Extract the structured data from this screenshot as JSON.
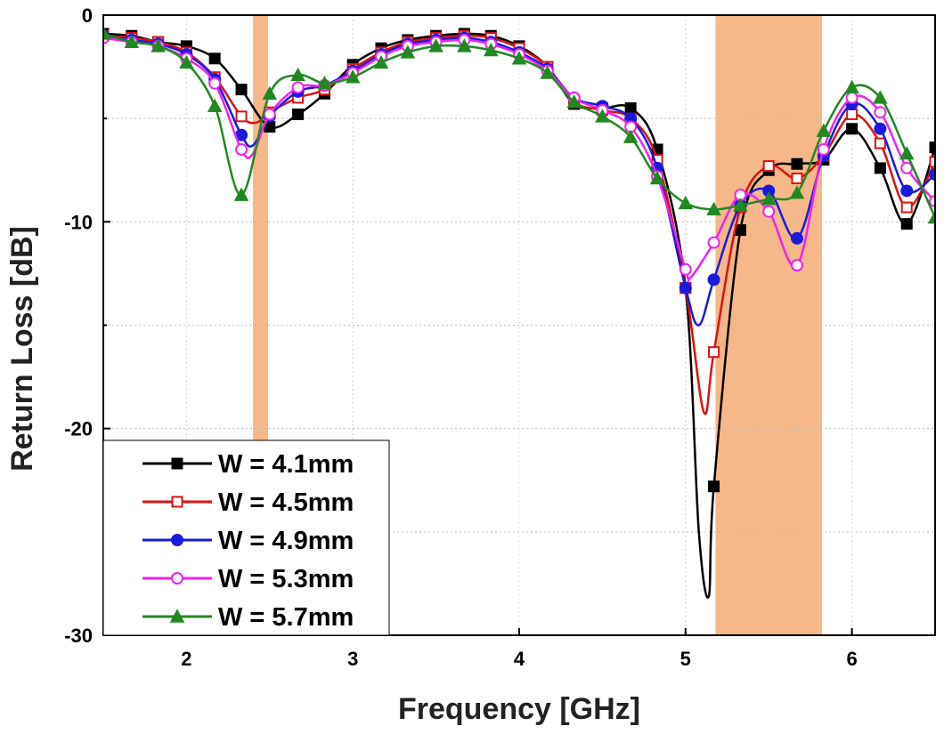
{
  "chart_data": {
    "type": "line",
    "xlabel": "Frequency [GHz]",
    "ylabel": "Return Loss [dB]",
    "xlim": [
      1.5,
      6.5
    ],
    "ylim": [
      -30,
      0
    ],
    "xticks": [
      2,
      3,
      4,
      5,
      6
    ],
    "yticks": [
      0,
      -10,
      -20,
      -30
    ],
    "grid": true,
    "legend_position": "bottom-left",
    "highlight_bands": [
      {
        "x_start": 2.4,
        "x_end": 2.49,
        "color": "#f6b888"
      },
      {
        "x_start": 5.18,
        "x_end": 5.82,
        "color": "#f6b888"
      }
    ],
    "series": [
      {
        "name": "W = 4.1mm",
        "color": "#000000",
        "marker": "square-filled",
        "points": [
          [
            1.5,
            -0.9
          ],
          [
            1.67,
            -1.0
          ],
          [
            1.83,
            -1.3
          ],
          [
            2.0,
            -1.5
          ],
          [
            2.17,
            -2.1
          ],
          [
            2.33,
            -3.6
          ],
          [
            2.5,
            -5.4
          ],
          [
            2.67,
            -4.8
          ],
          [
            2.83,
            -3.8
          ],
          [
            3.0,
            -2.4
          ],
          [
            3.17,
            -1.6
          ],
          [
            3.33,
            -1.2
          ],
          [
            3.5,
            -1.0
          ],
          [
            3.67,
            -0.9
          ],
          [
            3.83,
            -1.0
          ],
          [
            4.0,
            -1.5
          ],
          [
            4.17,
            -2.5
          ],
          [
            4.33,
            -4.3
          ],
          [
            4.5,
            -4.5
          ],
          [
            4.67,
            -4.5
          ],
          [
            4.83,
            -6.5
          ],
          [
            5.0,
            -13.2
          ],
          [
            5.08,
            -25.0
          ],
          [
            5.14,
            -28.1
          ],
          [
            5.17,
            -22.8
          ],
          [
            5.33,
            -10.4
          ],
          [
            5.5,
            -7.5
          ],
          [
            5.67,
            -7.2
          ],
          [
            5.83,
            -7.0
          ],
          [
            6.0,
            -5.5
          ],
          [
            6.17,
            -7.4
          ],
          [
            6.33,
            -10.1
          ],
          [
            6.5,
            -6.4
          ]
        ],
        "markers_x": [
          1.5,
          1.67,
          1.83,
          2.0,
          2.17,
          2.33,
          2.5,
          2.67,
          2.83,
          3.0,
          3.17,
          3.33,
          3.5,
          3.67,
          3.83,
          4.0,
          4.17,
          4.33,
          4.5,
          4.67,
          4.83,
          5.0,
          5.17,
          5.33,
          5.5,
          5.67,
          5.83,
          6.0,
          6.17,
          6.33,
          6.5
        ]
      },
      {
        "name": "W = 4.5mm",
        "color": "#dd1111",
        "marker": "square-open",
        "points": [
          [
            1.5,
            -1.0
          ],
          [
            1.67,
            -1.1
          ],
          [
            1.83,
            -1.3
          ],
          [
            2.0,
            -1.8
          ],
          [
            2.17,
            -3.0
          ],
          [
            2.33,
            -4.9
          ],
          [
            2.42,
            -5.2
          ],
          [
            2.5,
            -4.7
          ],
          [
            2.67,
            -4.0
          ],
          [
            2.83,
            -3.6
          ],
          [
            3.0,
            -2.6
          ],
          [
            3.17,
            -1.8
          ],
          [
            3.33,
            -1.3
          ],
          [
            3.5,
            -1.1
          ],
          [
            3.67,
            -1.0
          ],
          [
            3.83,
            -1.1
          ],
          [
            4.0,
            -1.6
          ],
          [
            4.17,
            -2.5
          ],
          [
            4.33,
            -4.2
          ],
          [
            4.5,
            -4.6
          ],
          [
            4.67,
            -5.0
          ],
          [
            4.83,
            -7.0
          ],
          [
            5.0,
            -13.2
          ],
          [
            5.11,
            -19.2
          ],
          [
            5.17,
            -16.3
          ],
          [
            5.33,
            -9.3
          ],
          [
            5.5,
            -7.3
          ],
          [
            5.67,
            -7.9
          ],
          [
            5.83,
            -6.8
          ],
          [
            6.0,
            -4.8
          ],
          [
            6.17,
            -6.2
          ],
          [
            6.33,
            -9.3
          ],
          [
            6.5,
            -7.1
          ]
        ],
        "markers_x": [
          1.5,
          1.67,
          1.83,
          2.0,
          2.17,
          2.33,
          2.5,
          2.67,
          2.83,
          3.0,
          3.17,
          3.33,
          3.5,
          3.67,
          3.83,
          4.0,
          4.17,
          4.33,
          4.5,
          4.67,
          4.83,
          5.0,
          5.17,
          5.33,
          5.5,
          5.67,
          5.83,
          6.0,
          6.17,
          6.33,
          6.5
        ]
      },
      {
        "name": "W = 4.9mm",
        "color": "#1a1add",
        "marker": "circle-filled",
        "points": [
          [
            1.5,
            -1.0
          ],
          [
            1.67,
            -1.2
          ],
          [
            1.83,
            -1.4
          ],
          [
            2.0,
            -1.9
          ],
          [
            2.17,
            -3.1
          ],
          [
            2.33,
            -5.8
          ],
          [
            2.4,
            -6.3
          ],
          [
            2.5,
            -4.9
          ],
          [
            2.67,
            -3.7
          ],
          [
            2.83,
            -3.4
          ],
          [
            3.0,
            -2.7
          ],
          [
            3.17,
            -1.9
          ],
          [
            3.33,
            -1.4
          ],
          [
            3.5,
            -1.2
          ],
          [
            3.67,
            -1.1
          ],
          [
            3.83,
            -1.3
          ],
          [
            4.0,
            -1.8
          ],
          [
            4.17,
            -2.6
          ],
          [
            4.33,
            -4.0
          ],
          [
            4.5,
            -4.4
          ],
          [
            4.67,
            -5.0
          ],
          [
            4.83,
            -7.4
          ],
          [
            5.0,
            -13.2
          ],
          [
            5.08,
            -15.0
          ],
          [
            5.17,
            -12.8
          ],
          [
            5.33,
            -9.2
          ],
          [
            5.5,
            -8.5
          ],
          [
            5.67,
            -10.8
          ],
          [
            5.83,
            -6.8
          ],
          [
            6.0,
            -4.3
          ],
          [
            6.17,
            -5.5
          ],
          [
            6.33,
            -8.5
          ],
          [
            6.5,
            -7.7
          ]
        ],
        "markers_x": [
          1.5,
          1.67,
          1.83,
          2.0,
          2.17,
          2.33,
          2.5,
          2.67,
          2.83,
          3.0,
          3.17,
          3.33,
          3.5,
          3.67,
          3.83,
          4.0,
          4.17,
          4.33,
          4.5,
          4.67,
          4.83,
          5.0,
          5.17,
          5.33,
          5.5,
          5.67,
          5.83,
          6.0,
          6.17,
          6.33,
          6.5
        ]
      },
      {
        "name": "W = 5.3mm",
        "color": "#ee22ee",
        "marker": "circle-open",
        "points": [
          [
            1.5,
            -1.1
          ],
          [
            1.67,
            -1.3
          ],
          [
            1.83,
            -1.5
          ],
          [
            2.0,
            -2.1
          ],
          [
            2.17,
            -3.3
          ],
          [
            2.33,
            -6.5
          ],
          [
            2.4,
            -6.7
          ],
          [
            2.5,
            -4.8
          ],
          [
            2.67,
            -3.5
          ],
          [
            2.83,
            -3.4
          ],
          [
            3.0,
            -2.8
          ],
          [
            3.17,
            -2.0
          ],
          [
            3.33,
            -1.5
          ],
          [
            3.5,
            -1.3
          ],
          [
            3.67,
            -1.2
          ],
          [
            3.83,
            -1.4
          ],
          [
            4.0,
            -1.9
          ],
          [
            4.17,
            -2.7
          ],
          [
            4.33,
            -4.0
          ],
          [
            4.5,
            -4.6
          ],
          [
            4.67,
            -5.4
          ],
          [
            4.83,
            -7.8
          ],
          [
            5.0,
            -12.3
          ],
          [
            5.03,
            -12.7
          ],
          [
            5.17,
            -11.0
          ],
          [
            5.33,
            -8.7
          ],
          [
            5.5,
            -9.5
          ],
          [
            5.67,
            -12.1
          ],
          [
            5.83,
            -6.5
          ],
          [
            6.0,
            -4.0
          ],
          [
            6.17,
            -4.7
          ],
          [
            6.33,
            -7.4
          ],
          [
            6.5,
            -9.0
          ]
        ],
        "markers_x": [
          1.5,
          1.67,
          1.83,
          2.0,
          2.17,
          2.33,
          2.5,
          2.67,
          2.83,
          3.0,
          3.17,
          3.33,
          3.5,
          3.67,
          3.83,
          4.0,
          4.17,
          4.33,
          4.5,
          4.67,
          4.83,
          5.0,
          5.17,
          5.33,
          5.5,
          5.67,
          5.83,
          6.0,
          6.17,
          6.33,
          6.5
        ]
      },
      {
        "name": "W = 5.7mm",
        "color": "#228822",
        "marker": "triangle-filled",
        "points": [
          [
            1.5,
            -0.9
          ],
          [
            1.67,
            -1.3
          ],
          [
            1.83,
            -1.5
          ],
          [
            2.0,
            -2.3
          ],
          [
            2.17,
            -4.4
          ],
          [
            2.33,
            -8.7
          ],
          [
            2.5,
            -3.8
          ],
          [
            2.67,
            -2.9
          ],
          [
            2.83,
            -3.3
          ],
          [
            3.0,
            -3.0
          ],
          [
            3.17,
            -2.3
          ],
          [
            3.33,
            -1.8
          ],
          [
            3.5,
            -1.5
          ],
          [
            3.67,
            -1.5
          ],
          [
            3.83,
            -1.7
          ],
          [
            4.0,
            -2.1
          ],
          [
            4.17,
            -2.8
          ],
          [
            4.33,
            -4.2
          ],
          [
            4.5,
            -4.9
          ],
          [
            4.67,
            -5.9
          ],
          [
            4.83,
            -7.9
          ],
          [
            5.0,
            -9.1
          ],
          [
            5.17,
            -9.4
          ],
          [
            5.33,
            -9.2
          ],
          [
            5.5,
            -8.9
          ],
          [
            5.67,
            -8.6
          ],
          [
            5.83,
            -5.6
          ],
          [
            6.0,
            -3.5
          ],
          [
            6.17,
            -4.0
          ],
          [
            6.33,
            -6.7
          ],
          [
            6.5,
            -9.8
          ]
        ],
        "markers_x": [
          1.5,
          1.67,
          1.83,
          2.0,
          2.17,
          2.33,
          2.5,
          2.67,
          2.83,
          3.0,
          3.17,
          3.33,
          3.5,
          3.67,
          3.83,
          4.0,
          4.17,
          4.33,
          4.5,
          4.67,
          4.83,
          5.0,
          5.17,
          5.33,
          5.5,
          5.67,
          5.83,
          6.0,
          6.17,
          6.33,
          6.5
        ]
      }
    ]
  }
}
